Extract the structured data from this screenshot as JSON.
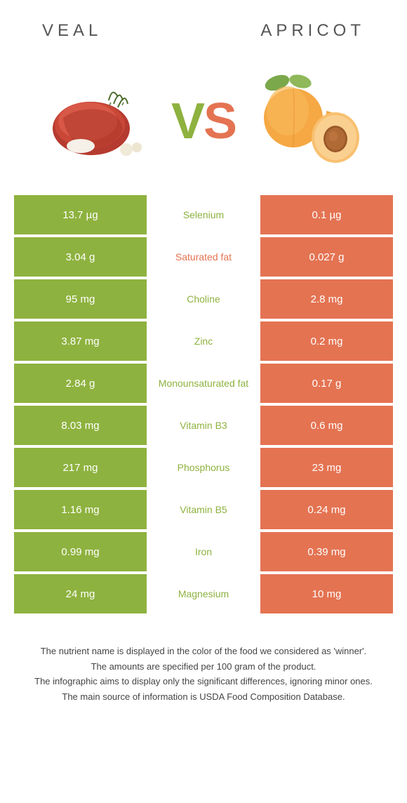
{
  "colors": {
    "veal": "#8eb23f",
    "apricot": "#e47352",
    "header_text": "#555555",
    "footer_text": "#444444",
    "background": "#ffffff"
  },
  "header": {
    "left": "Veal",
    "right": "Apricot"
  },
  "vs": {
    "v": "V",
    "s": "S"
  },
  "rows": [
    {
      "left": "13.7 µg",
      "label": "Selenium",
      "right": "0.1 µg",
      "winner": "veal"
    },
    {
      "left": "3.04 g",
      "label": "Saturated fat",
      "right": "0.027 g",
      "winner": "apricot"
    },
    {
      "left": "95 mg",
      "label": "Choline",
      "right": "2.8 mg",
      "winner": "veal"
    },
    {
      "left": "3.87 mg",
      "label": "Zinc",
      "right": "0.2 mg",
      "winner": "veal"
    },
    {
      "left": "2.84 g",
      "label": "Monounsaturated fat",
      "right": "0.17 g",
      "winner": "veal"
    },
    {
      "left": "8.03 mg",
      "label": "Vitamin B3",
      "right": "0.6 mg",
      "winner": "veal"
    },
    {
      "left": "217 mg",
      "label": "Phosphorus",
      "right": "23 mg",
      "winner": "veal"
    },
    {
      "left": "1.16 mg",
      "label": "Vitamin B5",
      "right": "0.24 mg",
      "winner": "veal"
    },
    {
      "left": "0.99 mg",
      "label": "Iron",
      "right": "0.39 mg",
      "winner": "veal"
    },
    {
      "left": "24 mg",
      "label": "Magnesium",
      "right": "10 mg",
      "winner": "veal"
    }
  ],
  "footer": {
    "lines": [
      "The nutrient name is displayed in the color of the food we considered as 'winner'.",
      "The amounts are specified per 100 gram of the product.",
      "The infographic aims to display only the significant differences, ignoring minor ones.",
      "The main source of information is USDA Food Composition Database."
    ]
  }
}
